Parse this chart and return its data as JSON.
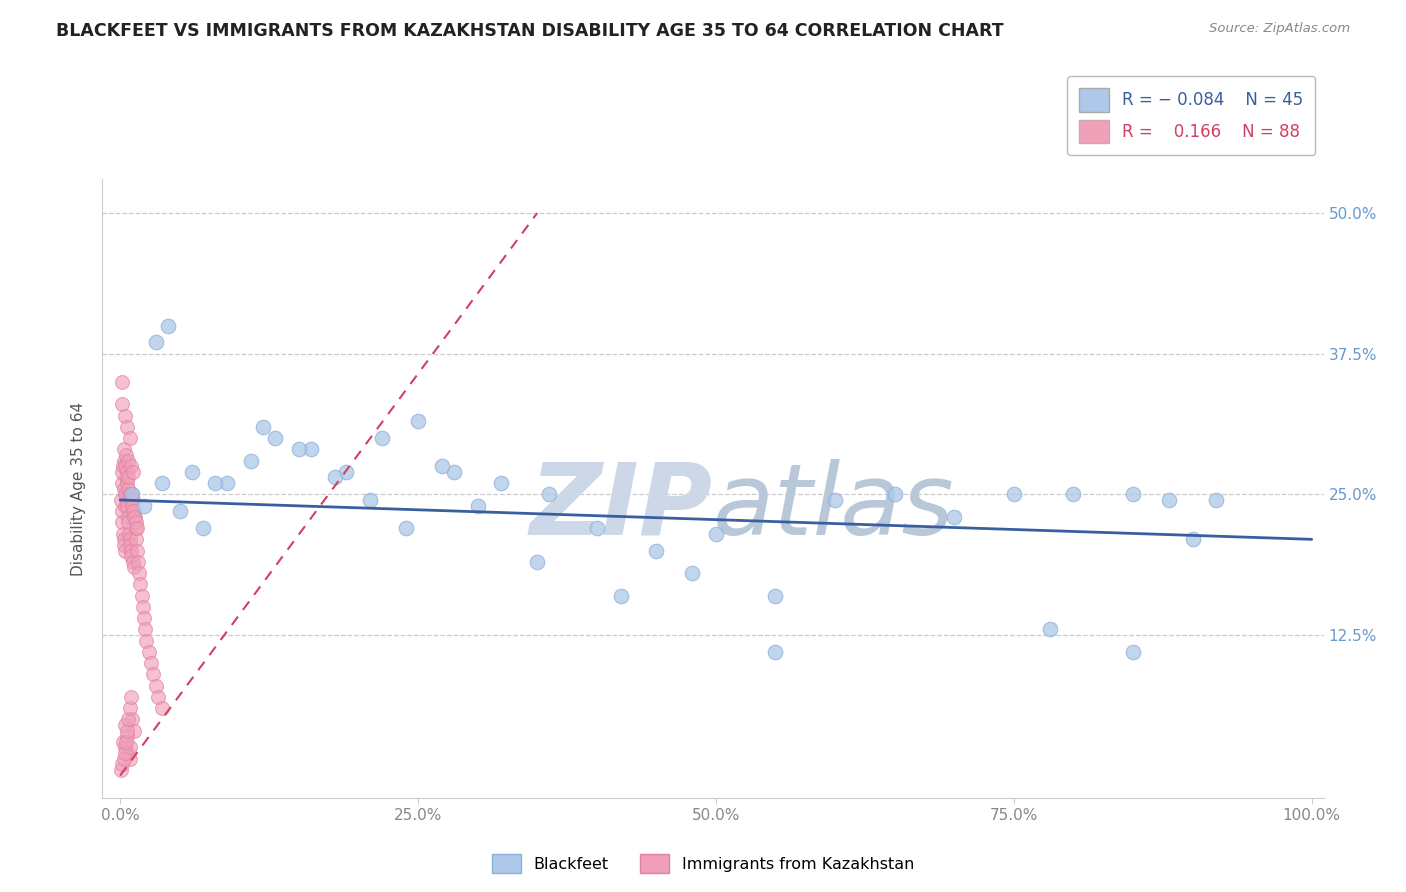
{
  "title": "BLACKFEET VS IMMIGRANTS FROM KAZAKHSTAN DISABILITY AGE 35 TO 64 CORRELATION CHART",
  "source_text": "Source: ZipAtlas.com",
  "ylabel": "Disability Age 35 to 64",
  "R_blackfeet": -0.084,
  "N_blackfeet": 45,
  "R_kazakhstan": 0.166,
  "N_kazakhstan": 88,
  "color_blue": "#adc8e8",
  "color_blue_edge": "#8ab0d8",
  "color_pink": "#f0a0b8",
  "color_pink_edge": "#e080a0",
  "trendline_blue": "#3a5fa0",
  "trendline_pink": "#d04060",
  "watermark_color": "#ccd8e8",
  "grid_color": "#cccccc",
  "ytick_color": "#6699cc",
  "xtick_color": "#888888",
  "bf_x": [
    1.0,
    2.0,
    3.5,
    5.0,
    7.0,
    9.0,
    11.0,
    13.0,
    16.0,
    19.0,
    22.0,
    25.0,
    28.0,
    32.0,
    36.0,
    40.0,
    45.0,
    50.0,
    55.0,
    60.0,
    65.0,
    70.0,
    75.0,
    80.0,
    85.0,
    88.0,
    90.0,
    3.0,
    4.0,
    6.0,
    8.0,
    12.0,
    15.0,
    18.0,
    21.0,
    24.0,
    27.0,
    30.0,
    35.0,
    42.0,
    48.0,
    55.0,
    78.0,
    85.0,
    92.0
  ],
  "bf_y": [
    25.0,
    24.0,
    26.0,
    23.5,
    22.0,
    26.0,
    28.0,
    30.0,
    29.0,
    27.0,
    30.0,
    31.5,
    27.0,
    26.0,
    25.0,
    22.0,
    20.0,
    21.5,
    16.0,
    24.5,
    25.0,
    23.0,
    25.0,
    25.0,
    25.0,
    24.5,
    21.0,
    38.5,
    40.0,
    27.0,
    26.0,
    31.0,
    29.0,
    26.5,
    24.5,
    22.0,
    27.5,
    24.0,
    19.0,
    16.0,
    18.0,
    11.0,
    13.0,
    11.0,
    24.5
  ],
  "kz_x": [
    0.1,
    0.15,
    0.2,
    0.25,
    0.3,
    0.35,
    0.4,
    0.45,
    0.5,
    0.55,
    0.6,
    0.65,
    0.7,
    0.75,
    0.8,
    0.85,
    0.9,
    0.95,
    1.0,
    1.05,
    1.1,
    1.15,
    1.2,
    1.25,
    1.3,
    1.35,
    1.4,
    1.5,
    1.6,
    1.7,
    1.8,
    1.9,
    2.0,
    2.1,
    2.2,
    2.4,
    2.6,
    2.8,
    3.0,
    3.2,
    3.5,
    0.2,
    0.3,
    0.4,
    0.5,
    0.6,
    0.7,
    0.8,
    0.9,
    1.0,
    1.1,
    1.2,
    1.3,
    1.4,
    0.15,
    0.25,
    0.35,
    0.45,
    0.55,
    0.65,
    0.3,
    0.5,
    0.7,
    0.9,
    1.1,
    0.2,
    0.4,
    0.6,
    0.8,
    1.0,
    1.2,
    0.25,
    0.45,
    0.65,
    0.85,
    0.2,
    0.4,
    0.6,
    0.8,
    0.1,
    0.2,
    0.3,
    0.4,
    0.5,
    0.6,
    0.7,
    0.8,
    0.9
  ],
  "kz_y": [
    24.5,
    23.5,
    22.5,
    21.5,
    21.0,
    20.5,
    20.0,
    24.0,
    25.0,
    24.5,
    24.0,
    23.0,
    22.5,
    21.5,
    21.0,
    20.5,
    20.0,
    19.5,
    25.0,
    24.5,
    19.0,
    18.5,
    23.5,
    23.0,
    22.0,
    21.0,
    20.0,
    19.0,
    18.0,
    17.0,
    16.0,
    15.0,
    14.0,
    13.0,
    12.0,
    11.0,
    10.0,
    9.0,
    8.0,
    7.0,
    6.0,
    26.0,
    25.5,
    25.0,
    26.5,
    26.0,
    25.5,
    25.0,
    24.5,
    24.0,
    23.5,
    23.0,
    22.5,
    22.0,
    27.0,
    27.5,
    28.0,
    27.5,
    27.0,
    26.5,
    29.0,
    28.5,
    28.0,
    27.5,
    27.0,
    33.0,
    32.0,
    31.0,
    30.0,
    5.0,
    4.0,
    3.0,
    2.5,
    2.0,
    1.5,
    35.0,
    4.5,
    3.5,
    2.5,
    0.5,
    1.0,
    1.5,
    2.0,
    3.0,
    4.0,
    5.0,
    6.0,
    7.0
  ]
}
